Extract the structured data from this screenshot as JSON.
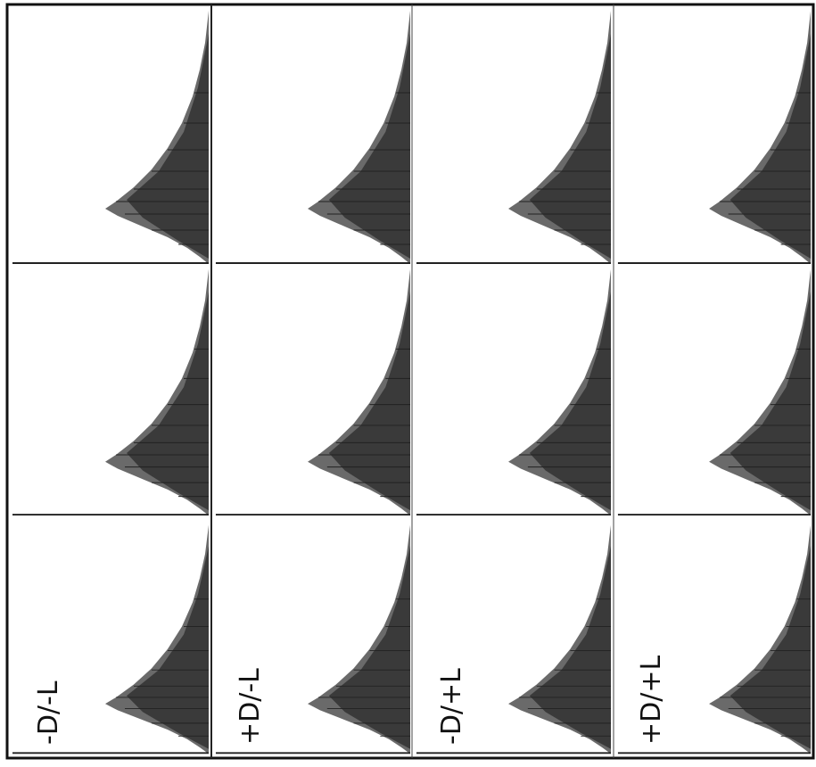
{
  "labels": [
    "-D/-L",
    "+D/-L",
    "-D/+L",
    "+D/+L"
  ]
}
